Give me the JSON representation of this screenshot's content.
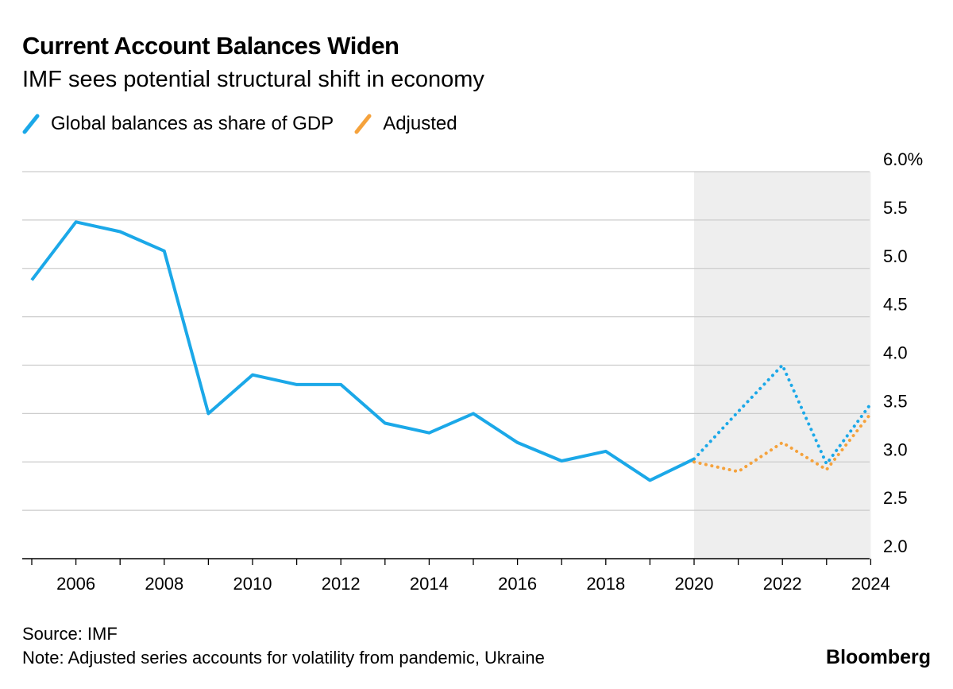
{
  "title": "Current Account Balances Widen",
  "subtitle": "IMF sees potential structural shift in economy",
  "legend": [
    {
      "label": "Global balances as share of GDP",
      "color": "#1ba8e8"
    },
    {
      "label": "Adjusted",
      "color": "#f5a23c"
    }
  ],
  "source": "Source: IMF",
  "note": "Note: Adjusted series accounts for volatility from pandemic, Ukraine",
  "brand": "Bloomberg",
  "chart_data": {
    "type": "line",
    "ylim": [
      2.0,
      6.0
    ],
    "xlim": [
      2005,
      2024
    ],
    "y_ticks": [
      {
        "value": 6.0,
        "label": "6.0%"
      },
      {
        "value": 5.5,
        "label": "5.5"
      },
      {
        "value": 5.0,
        "label": "5.0"
      },
      {
        "value": 4.5,
        "label": "4.5"
      },
      {
        "value": 4.0,
        "label": "4.0"
      },
      {
        "value": 3.5,
        "label": "3.5"
      },
      {
        "value": 3.0,
        "label": "3.0"
      },
      {
        "value": 2.5,
        "label": "2.5"
      },
      {
        "value": 2.0,
        "label": "2.0"
      }
    ],
    "x_ticks": [
      "2006",
      "2008",
      "2010",
      "2012",
      "2014",
      "2016",
      "2018",
      "2020",
      "2022",
      "2024"
    ],
    "shaded_region": {
      "from": 2020,
      "to": 2024,
      "color": "#eeeeee"
    },
    "grid": true,
    "y_axis_position": "right",
    "series": [
      {
        "name": "Global balances as share of GDP",
        "color": "#1ba8e8",
        "style": "solid",
        "x": [
          2005,
          2006,
          2007,
          2008,
          2009,
          2010,
          2011,
          2012,
          2013,
          2014,
          2015,
          2016,
          2017,
          2018,
          2019,
          2020
        ],
        "y": [
          4.88,
          5.48,
          5.38,
          5.18,
          3.5,
          3.9,
          3.8,
          3.8,
          3.4,
          3.3,
          3.5,
          3.2,
          3.01,
          3.11,
          2.81,
          3.03
        ]
      },
      {
        "name": "Global balances as share of GDP",
        "color": "#1ba8e8",
        "style": "dotted",
        "x": [
          2020,
          2021,
          2022,
          2023,
          2024
        ],
        "y": [
          3.03,
          3.52,
          4.0,
          2.98,
          3.6
        ]
      },
      {
        "name": "Adjusted",
        "color": "#f5a23c",
        "style": "dotted",
        "x": [
          2020,
          2021,
          2022,
          2023,
          2024
        ],
        "y": [
          3.0,
          2.9,
          3.2,
          2.92,
          3.5
        ]
      }
    ]
  }
}
